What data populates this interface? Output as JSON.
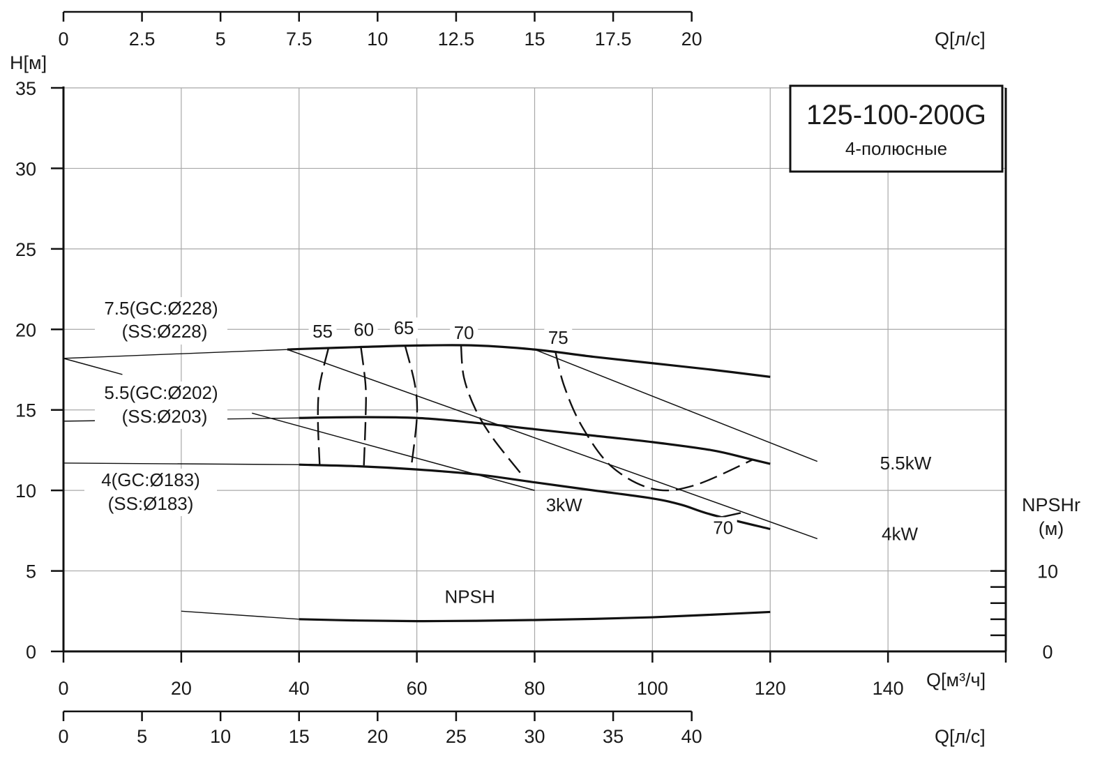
{
  "chart_data": {
    "type": "line",
    "title": "125-100-200G",
    "subtitle": "4-полюсные",
    "xlabel": "Q[м³/ч]",
    "ylabel": "H[м]",
    "xlim": [
      0,
      160
    ],
    "ylim": [
      0,
      35
    ],
    "grid": true,
    "x_ticks": [
      "0",
      "20",
      "40",
      "60",
      "80",
      "100",
      "120",
      "140"
    ],
    "y_ticks": [
      "0",
      "5",
      "10",
      "15",
      "20",
      "25",
      "30",
      "35"
    ],
    "top_axis": {
      "label": "Q[л/с]",
      "ticks": [
        "0",
        "2.5",
        "5",
        "7.5",
        "10",
        "12.5",
        "15",
        "17.5",
        "20"
      ],
      "values": [
        0,
        2.5,
        5,
        7.5,
        10,
        12.5,
        15,
        17.5,
        20
      ],
      "flow_ratio": 0.1875
    },
    "bottom_axis": {
      "label": "Q[л/с]",
      "ticks": [
        "0",
        "5",
        "10",
        "15",
        "20",
        "25",
        "30",
        "35",
        "40"
      ],
      "values": [
        0,
        5,
        10,
        15,
        20,
        25,
        30,
        35,
        40
      ],
      "flow_ratio": 0.375
    },
    "npsh_axis": {
      "label_line1": "NPSHr",
      "label_line2": "(м)",
      "ticks": [
        "0",
        "10"
      ],
      "values": [
        0,
        10
      ],
      "h_per_unit": 0.5
    },
    "series": [
      {
        "name": "7.5(GC:Ø228)",
        "label2": "(SS:Ø228)",
        "thin": [
          [
            0,
            18.2
          ],
          [
            38,
            18.75
          ]
        ],
        "thick": [
          [
            38,
            18.75
          ],
          [
            40,
            18.78
          ],
          [
            50,
            18.9
          ],
          [
            60,
            19.0
          ],
          [
            70,
            19.0
          ],
          [
            80,
            18.75
          ],
          [
            90,
            18.3
          ],
          [
            100,
            17.9
          ],
          [
            110,
            17.5
          ],
          [
            120,
            17.05
          ]
        ]
      },
      {
        "name": "5.5(GC:Ø202)",
        "label2": "(SS:Ø203)",
        "thin": [
          [
            0,
            14.3
          ],
          [
            40,
            14.5
          ]
        ],
        "thick": [
          [
            40,
            14.5
          ],
          [
            50,
            14.55
          ],
          [
            60,
            14.5
          ],
          [
            70,
            14.2
          ],
          [
            80,
            13.8
          ],
          [
            90,
            13.4
          ],
          [
            100,
            13.0
          ],
          [
            110,
            12.5
          ],
          [
            116,
            12.0
          ],
          [
            120,
            11.65
          ]
        ]
      },
      {
        "name": "4(GC:Ø183)",
        "label2": "(SS:Ø183)",
        "thin": [
          [
            0,
            11.7
          ],
          [
            40,
            11.6
          ]
        ],
        "thick": [
          [
            40,
            11.6
          ],
          [
            50,
            11.5
          ],
          [
            60,
            11.3
          ],
          [
            70,
            11.0
          ],
          [
            80,
            10.5
          ],
          [
            90,
            10.0
          ],
          [
            100,
            9.5
          ],
          [
            105,
            9.1
          ],
          [
            110,
            8.5
          ],
          [
            120,
            7.6
          ]
        ]
      }
    ],
    "efficiency": [
      {
        "label": "55",
        "points": [
          [
            45,
            18.85
          ],
          [
            43.5,
            16.5
          ],
          [
            43.2,
            14.5
          ],
          [
            43.5,
            11.6
          ]
        ],
        "label_at": [
          44,
          19.5
        ]
      },
      {
        "label": "60",
        "points": [
          [
            50.5,
            18.9
          ],
          [
            51.3,
            16.5
          ],
          [
            51.3,
            14.5
          ],
          [
            51,
            11.5
          ]
        ],
        "label_at": [
          51,
          19.6
        ]
      },
      {
        "label": "65",
        "points": [
          [
            58,
            19.0
          ],
          [
            59.7,
            16.5
          ],
          [
            60,
            14.5
          ],
          [
            59,
            11.3
          ]
        ],
        "label_at": [
          57.8,
          19.7
        ]
      },
      {
        "label": "70",
        "points": [
          [
            67.5,
            19.0
          ],
          [
            68,
            17
          ],
          [
            70,
            15
          ],
          [
            73,
            13.2
          ],
          [
            78,
            10.9
          ]
        ],
        "label_at": [
          68,
          19.4
        ]
      },
      {
        "label": "75",
        "points": [
          [
            83.5,
            18.65
          ],
          [
            85,
            16.5
          ],
          [
            88,
            14
          ],
          [
            93,
            11.5
          ],
          [
            100,
            10.1
          ],
          [
            107,
            10.3
          ],
          [
            117,
            11.9
          ]
        ],
        "label_at": [
          84,
          19.1
        ]
      },
      {
        "label": "70",
        "points": [
          [
            110,
            8.2
          ],
          [
            115,
            8.6
          ]
        ],
        "label_at": [
          112,
          7.3
        ],
        "solid": true
      }
    ],
    "power": [
      {
        "label": "3kW",
        "points": [
          [
            32,
            14.8
          ],
          [
            80,
            10.0
          ]
        ],
        "label_at": [
          85,
          8.7
        ]
      },
      {
        "label": "4kW",
        "points": [
          [
            0,
            18.2
          ],
          [
            10,
            17.2
          ]
        ],
        "points2": [
          [
            38,
            18.75
          ],
          [
            128,
            7.0
          ]
        ],
        "label_at": [
          142,
          6.9
        ]
      },
      {
        "label": "5.5kW",
        "points": [
          [
            80,
            18.75
          ],
          [
            128,
            11.8
          ]
        ],
        "label_at": [
          143,
          11.3
        ]
      }
    ],
    "npsh": {
      "label": "NPSH",
      "label_at": [
        69,
        3.0
      ],
      "thin": [
        [
          20,
          2.5
        ],
        [
          40,
          2.0
        ]
      ],
      "thick": [
        [
          40,
          2.0
        ],
        [
          50,
          1.92
        ],
        [
          60,
          1.88
        ],
        [
          70,
          1.9
        ],
        [
          80,
          1.95
        ],
        [
          90,
          2.02
        ],
        [
          100,
          2.12
        ],
        [
          110,
          2.28
        ],
        [
          120,
          2.45
        ]
      ]
    }
  }
}
